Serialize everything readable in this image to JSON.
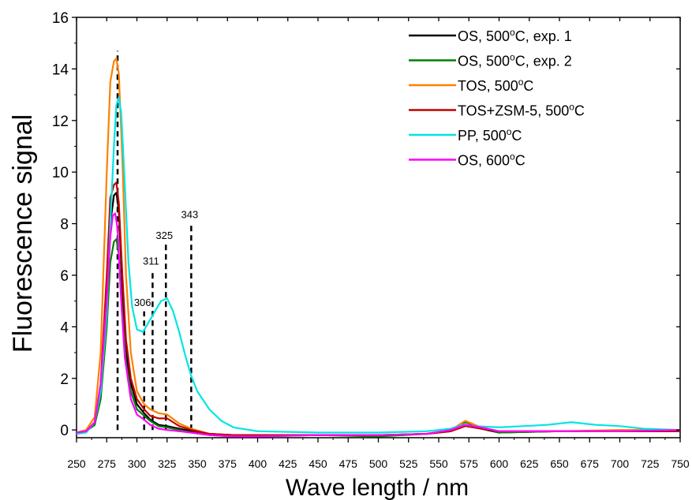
{
  "chart_data": {
    "type": "line",
    "title": "",
    "xlabel": "Wave length / nm",
    "ylabel": "Fluorescence signal",
    "xlim": [
      250,
      750
    ],
    "ylim": [
      -0.3,
      16
    ],
    "x_ticks": [
      250,
      275,
      300,
      325,
      350,
      375,
      400,
      425,
      450,
      475,
      500,
      525,
      550,
      575,
      600,
      625,
      650,
      675,
      700,
      725,
      750
    ],
    "y_ticks": [
      0,
      2,
      4,
      6,
      8,
      10,
      12,
      14,
      16
    ],
    "grid": false,
    "legend_position": "top-right",
    "colors": {
      "os_500_exp1": "#000000",
      "os_500_exp2": "#008000",
      "tos_500": "#ff8000",
      "tos_zsm5_500": "#c00000",
      "pp_500": "#00e5e5",
      "os_600": "#ff00ff"
    },
    "legend": [
      {
        "key": "os_500_exp1",
        "text": "OS, 500",
        "sup": "o",
        "tail": "C, exp. 1"
      },
      {
        "key": "os_500_exp2",
        "text": "OS, 500",
        "sup": "o",
        "tail": "C, exp. 2"
      },
      {
        "key": "tos_500",
        "text": "TOS, 500",
        "sup": "o",
        "tail": "C"
      },
      {
        "key": "tos_zsm5_500",
        "text": "TOS+ZSM-5, 500",
        "sup": "o",
        "tail": "C"
      },
      {
        "key": "pp_500",
        "text": "PP, 500",
        "sup": "o",
        "tail": "C"
      },
      {
        "key": "os_600",
        "text": "OS, 600",
        "sup": "o",
        "tail": "C"
      }
    ],
    "series": [
      {
        "key": "os_500_exp1",
        "x": [
          250,
          258,
          265,
          270,
          275,
          278,
          281,
          283,
          285,
          288,
          291,
          295,
          300,
          306,
          311,
          318,
          325,
          335,
          345,
          360,
          380,
          400,
          450,
          500,
          540,
          560,
          572,
          585,
          600,
          650,
          700,
          750
        ],
        "y": [
          -0.1,
          -0.05,
          0.2,
          1.5,
          5.0,
          8.0,
          9.1,
          9.2,
          8.5,
          5.5,
          3.0,
          1.8,
          1.0,
          0.65,
          0.4,
          0.2,
          0.15,
          0.05,
          -0.05,
          -0.15,
          -0.2,
          -0.2,
          -0.2,
          -0.2,
          -0.15,
          -0.05,
          0.2,
          0.05,
          -0.1,
          -0.05,
          -0.05,
          -0.05
        ]
      },
      {
        "key": "os_500_exp2",
        "x": [
          250,
          258,
          265,
          270,
          275,
          278,
          281,
          283,
          285,
          288,
          291,
          295,
          300,
          306,
          311,
          318,
          325,
          335,
          345,
          360,
          380,
          400,
          450,
          500,
          540,
          560,
          572,
          585,
          600,
          650,
          700,
          750
        ],
        "y": [
          -0.1,
          -0.05,
          0.2,
          1.2,
          4.0,
          6.5,
          7.3,
          7.4,
          6.8,
          4.5,
          2.6,
          1.5,
          0.8,
          0.55,
          0.35,
          0.15,
          0.1,
          0.0,
          -0.1,
          -0.2,
          -0.25,
          -0.25,
          -0.2,
          -0.25,
          -0.15,
          0.0,
          0.3,
          0.1,
          -0.1,
          -0.05,
          -0.05,
          -0.05
        ]
      },
      {
        "key": "tos_500",
        "x": [
          250,
          258,
          265,
          270,
          275,
          278,
          281,
          283,
          285,
          288,
          291,
          295,
          300,
          306,
          311,
          318,
          325,
          335,
          345,
          360,
          380,
          400,
          450,
          500,
          540,
          560,
          572,
          585,
          600,
          650,
          700,
          750
        ],
        "y": [
          -0.1,
          0.0,
          0.5,
          3.0,
          10.0,
          13.5,
          14.3,
          14.4,
          13.8,
          10.5,
          6.0,
          3.0,
          1.5,
          1.0,
          0.8,
          0.65,
          0.6,
          0.25,
          0.05,
          -0.15,
          -0.2,
          -0.2,
          -0.2,
          -0.2,
          -0.15,
          0.0,
          0.35,
          0.1,
          -0.05,
          -0.05,
          0.0,
          0.0
        ]
      },
      {
        "key": "tos_zsm5_500",
        "x": [
          250,
          258,
          265,
          270,
          275,
          278,
          281,
          283,
          285,
          288,
          291,
          295,
          300,
          306,
          311,
          318,
          325,
          335,
          345,
          360,
          380,
          400,
          450,
          500,
          540,
          560,
          572,
          585,
          600,
          650,
          700,
          750
        ],
        "y": [
          -0.1,
          -0.05,
          0.3,
          1.8,
          6.0,
          9.0,
          9.5,
          9.6,
          8.8,
          6.0,
          3.5,
          2.0,
          1.2,
          0.8,
          0.55,
          0.45,
          0.45,
          0.15,
          0.0,
          -0.15,
          -0.2,
          -0.2,
          -0.2,
          -0.2,
          -0.15,
          -0.05,
          0.15,
          0.05,
          -0.05,
          -0.05,
          -0.05,
          -0.05
        ]
      },
      {
        "key": "pp_500",
        "x": [
          250,
          258,
          265,
          270,
          275,
          278,
          281,
          283,
          285,
          287,
          290,
          293,
          296,
          300,
          305,
          310,
          315,
          320,
          325,
          330,
          335,
          340,
          345,
          350,
          360,
          370,
          380,
          400,
          450,
          500,
          540,
          560,
          570,
          580,
          600,
          620,
          640,
          660,
          680,
          700,
          720,
          750
        ],
        "y": [
          -0.15,
          -0.1,
          0.3,
          1.5,
          4.5,
          8.0,
          11.0,
          12.6,
          12.9,
          12.3,
          9.5,
          6.5,
          4.8,
          3.9,
          3.8,
          4.2,
          4.6,
          5.0,
          5.1,
          4.6,
          3.8,
          2.9,
          2.1,
          1.5,
          0.8,
          0.35,
          0.1,
          -0.05,
          -0.1,
          -0.1,
          -0.05,
          0.05,
          0.2,
          0.15,
          0.1,
          0.15,
          0.2,
          0.3,
          0.2,
          0.15,
          0.05,
          0.0
        ]
      },
      {
        "key": "os_600",
        "x": [
          250,
          258,
          265,
          270,
          275,
          278,
          280,
          282,
          284,
          287,
          290,
          295,
          300,
          306,
          311,
          318,
          325,
          335,
          345,
          360,
          380,
          400,
          450,
          500,
          540,
          560,
          572,
          585,
          600,
          650,
          700,
          750
        ],
        "y": [
          -0.1,
          -0.05,
          0.3,
          1.8,
          5.0,
          7.5,
          8.3,
          8.4,
          7.8,
          5.0,
          2.8,
          1.2,
          0.6,
          0.4,
          0.2,
          0.05,
          0.0,
          -0.05,
          -0.1,
          -0.2,
          -0.25,
          -0.25,
          -0.2,
          -0.2,
          -0.15,
          0.0,
          0.2,
          0.1,
          -0.05,
          -0.05,
          -0.05,
          0.0
        ]
      }
    ],
    "annotations": [
      {
        "label": "",
        "x": 284,
        "y_top": 14.7
      },
      {
        "label": "306",
        "x": 306,
        "y_top": 4.6
      },
      {
        "label": "311",
        "x": 313,
        "y_top": 6.2
      },
      {
        "label": "325",
        "x": 324,
        "y_top": 7.2
      },
      {
        "label": "343",
        "x": 345,
        "y_top": 8.0
      }
    ]
  }
}
